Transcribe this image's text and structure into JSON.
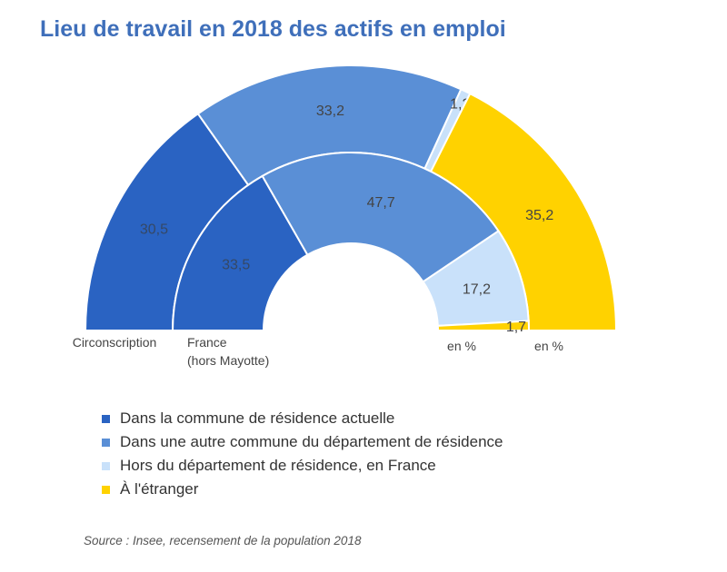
{
  "chart_data": {
    "type": "pie",
    "title": "Lieu de travail en 2018 des actifs en emploi",
    "unit_label": "en %",
    "categories": [
      "Dans la commune de résidence actuelle",
      "Dans une autre commune du département de résidence",
      "Hors du département de résidence, en France",
      "À l'étranger"
    ],
    "colors": [
      "#2a63c2",
      "#5a8fd6",
      "#c9e1fa",
      "#ffd200"
    ],
    "series": [
      {
        "name": "Circonscription",
        "values_label": "30,5|33,2|1,2|35,2",
        "values": [
          30.5,
          33.2,
          1.2,
          35.2
        ]
      },
      {
        "name": "France\n(hors Mayotte)",
        "values": [
          33.5,
          47.7,
          17.2,
          1.7
        ]
      }
    ],
    "value_labels": [
      [
        "30,5",
        "33,2",
        "1,2",
        "35,2"
      ],
      [
        "33,5",
        "47,7",
        "17,2",
        "1,7"
      ]
    ],
    "ring_labels": [
      "Circonscription",
      "France",
      "(hors Mayotte)"
    ],
    "legend": "bottom"
  },
  "source": "Source : Insee, recensement de la population 2018"
}
